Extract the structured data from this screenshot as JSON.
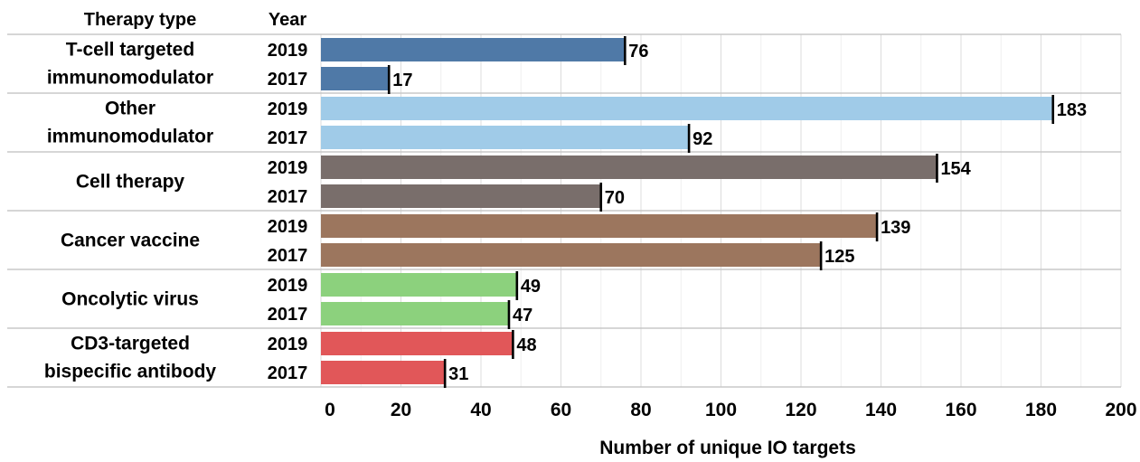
{
  "chart_data": {
    "type": "bar",
    "orientation": "horizontal",
    "headers": {
      "group": "Therapy type",
      "year": "Year"
    },
    "xlabel": "Number of unique IO targets",
    "xlim": [
      0,
      200
    ],
    "xticks": [
      0,
      20,
      40,
      60,
      80,
      100,
      120,
      140,
      160,
      180,
      200
    ],
    "grid": true,
    "groups": [
      {
        "name_lines": [
          "T-cell targeted",
          "immunomodulator"
        ],
        "color": "#4f79a7",
        "bars": [
          {
            "year": "2019",
            "value": 76
          },
          {
            "year": "2017",
            "value": 17
          }
        ]
      },
      {
        "name_lines": [
          "Other",
          "immunomodulator"
        ],
        "color": "#a0cbe8",
        "bars": [
          {
            "year": "2019",
            "value": 183
          },
          {
            "year": "2017",
            "value": 92
          }
        ]
      },
      {
        "name_lines": [
          "Cell therapy"
        ],
        "color": "#796e6b",
        "bars": [
          {
            "year": "2019",
            "value": 154
          },
          {
            "year": "2017",
            "value": 70
          }
        ]
      },
      {
        "name_lines": [
          "Cancer vaccine"
        ],
        "color": "#9c765e",
        "bars": [
          {
            "year": "2019",
            "value": 139
          },
          {
            "year": "2017",
            "value": 125
          }
        ]
      },
      {
        "name_lines": [
          "Oncolytic virus"
        ],
        "color": "#8cd17d",
        "bars": [
          {
            "year": "2019",
            "value": 49
          },
          {
            "year": "2017",
            "value": 47
          }
        ]
      },
      {
        "name_lines": [
          "CD3-targeted",
          "bispecific antibody"
        ],
        "color": "#e15759",
        "bars": [
          {
            "year": "2019",
            "value": 48
          },
          {
            "year": "2017",
            "value": 31
          }
        ]
      }
    ]
  }
}
